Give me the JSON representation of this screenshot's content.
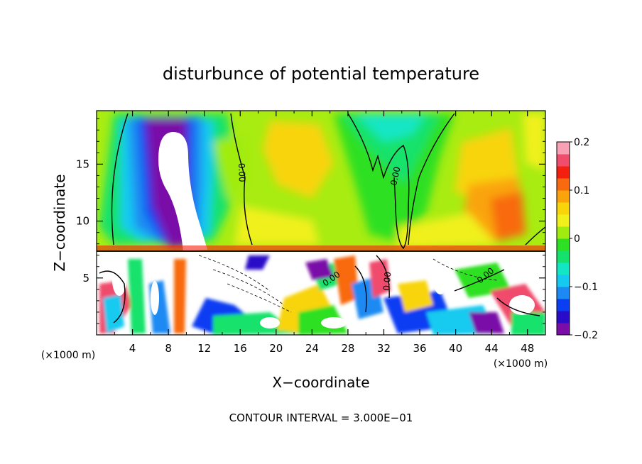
{
  "chart_data": {
    "type": "heatmap",
    "title": "disturbunce of potential temperature",
    "xlabel": "X−coordinate",
    "ylabel": "Z−coordinate",
    "x_unit": "(×1000 m)",
    "y_unit": "(×1000 m)",
    "xlim": [
      0,
      50
    ],
    "ylim": [
      0,
      19.7
    ],
    "x_ticks": [
      "4",
      "8",
      "12",
      "16",
      "20",
      "24",
      "28",
      "32",
      "36",
      "40",
      "44",
      "48"
    ],
    "x_tick_values": [
      4,
      8,
      12,
      16,
      20,
      24,
      28,
      32,
      36,
      40,
      44,
      48
    ],
    "y_ticks": [
      "5",
      "10",
      "15"
    ],
    "y_tick_values": [
      5,
      10,
      15
    ],
    "colorbar": {
      "range": [
        -0.2,
        0.2
      ],
      "tick_labels": [
        "0.2",
        "0.1",
        "0",
        "−0.1",
        "−0.2"
      ],
      "tick_values": [
        0.2,
        0.1,
        0,
        -0.1,
        -0.2
      ],
      "colors": [
        "#7a0ca8",
        "#2a0bc8",
        "#0a3ef2",
        "#1c8af2",
        "#14caf0",
        "#12e6c4",
        "#14e26c",
        "#2ee024",
        "#a0ec10",
        "#f0f01c",
        "#f8d40a",
        "#faa40c",
        "#f86a10",
        "#f4200e",
        "#f04c6c",
        "#f8a0b4"
      ]
    },
    "contour_labels": [
      "0.00",
      "0.00",
      "0.00",
      "0.00",
      "0.00"
    ],
    "footer": "CONTOUR INTERVAL = 3.000E−01"
  }
}
